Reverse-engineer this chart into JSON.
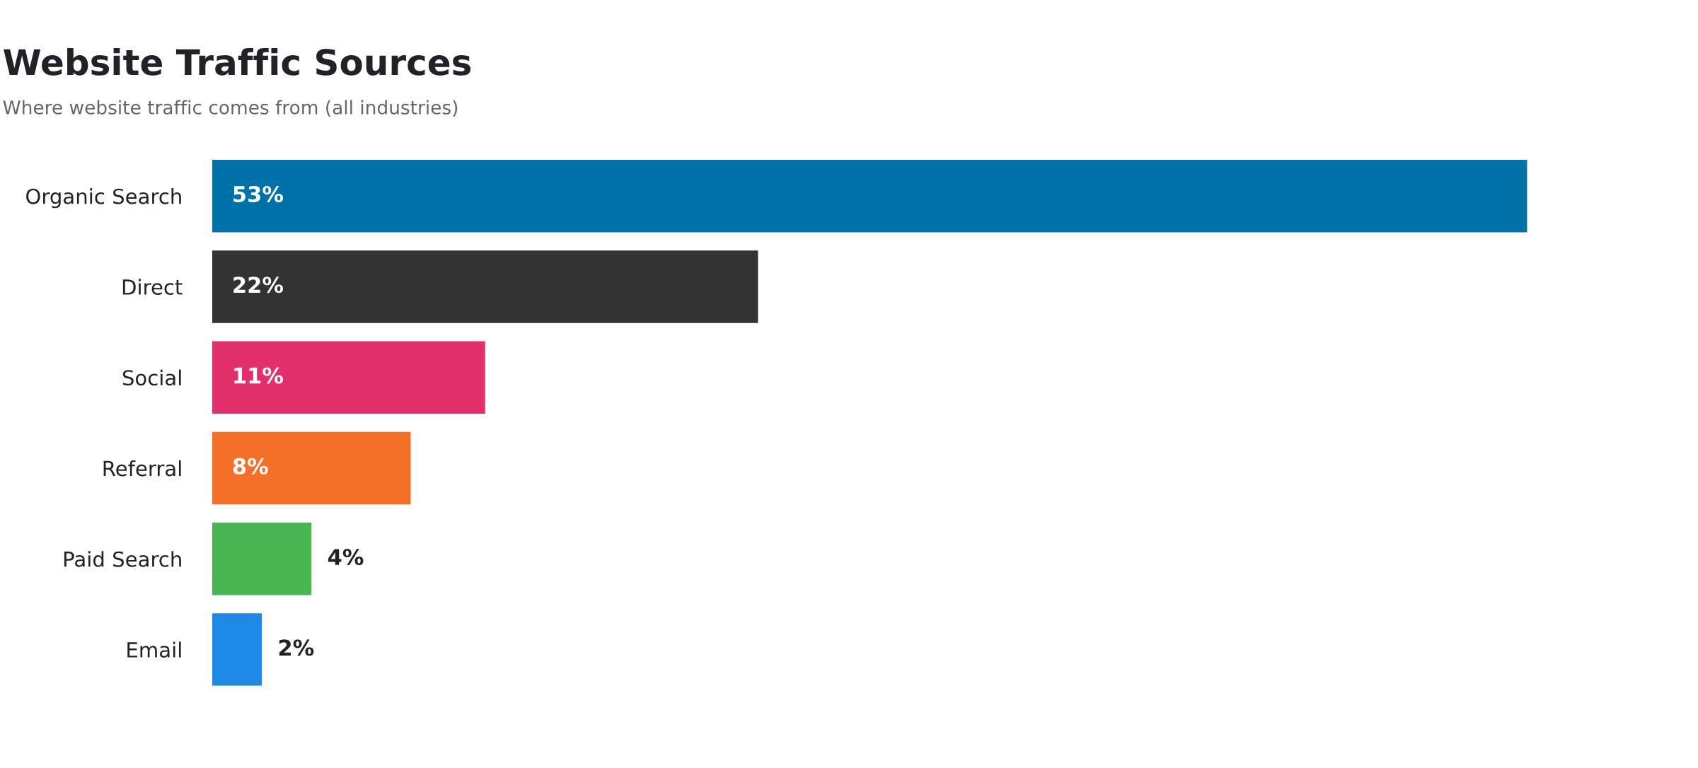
{
  "chart_data": {
    "type": "bar",
    "orientation": "horizontal",
    "title": "Website Traffic Sources",
    "subtitle": "Where website traffic comes from (all industries)",
    "categories": [
      "Organic Search",
      "Direct",
      "Social",
      "Referral",
      "Paid Search",
      "Email"
    ],
    "values": [
      53,
      22,
      11,
      8,
      4,
      2
    ],
    "value_labels": [
      "53%",
      "22%",
      "11%",
      "8%",
      "4%",
      "2%"
    ],
    "colors": [
      "#0072aa",
      "#333333",
      "#e2306c",
      "#f47029",
      "#47b552",
      "#1e88e5"
    ],
    "grid": false,
    "legend": false
  }
}
